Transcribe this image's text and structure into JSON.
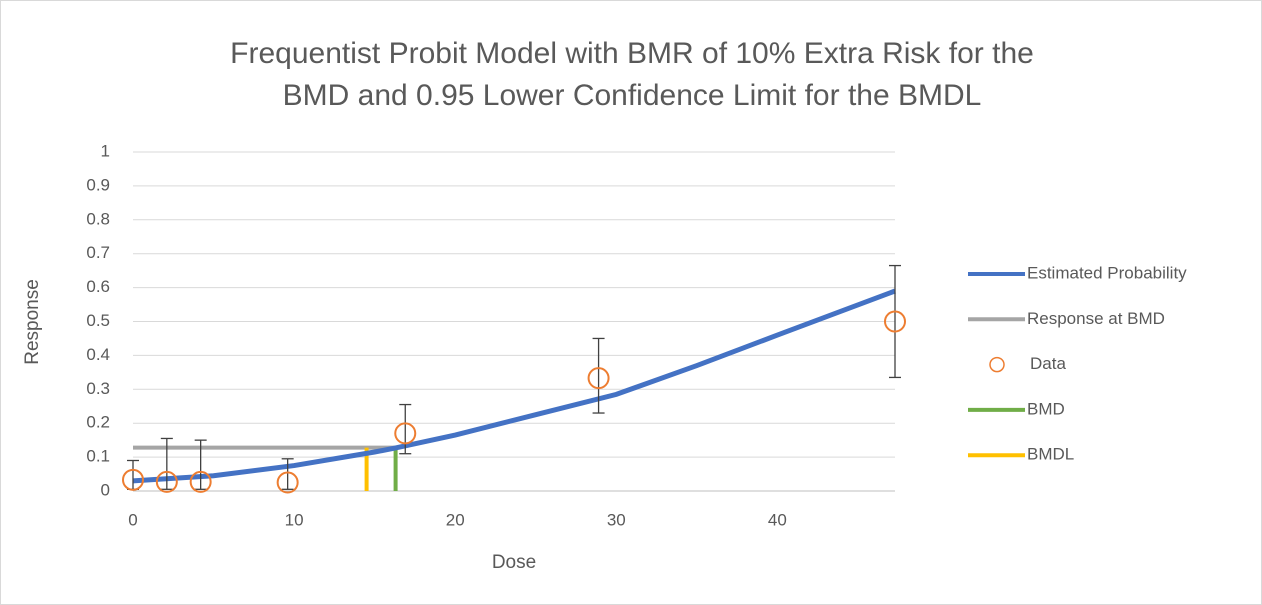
{
  "chart_data": {
    "type": "line",
    "title": [
      "Frequentist Probit Model with BMR of 10% Extra Risk for the",
      "BMD and 0.95 Lower Confidence Limit for the BMDL"
    ],
    "xlabel": "Dose",
    "ylabel": "Response",
    "xlim": [
      0,
      47.3
    ],
    "xticks": [
      0,
      10,
      20,
      30,
      40
    ],
    "ylim": [
      0,
      1
    ],
    "yticks": [
      0,
      0.1,
      0.2,
      0.3,
      0.4,
      0.5,
      0.6,
      0.7,
      0.8,
      0.9,
      1
    ],
    "grid": true,
    "legend": "right",
    "series": [
      {
        "name": "Estimated Probability",
        "type": "line",
        "color": "#4472c4",
        "x": [
          0,
          5,
          10,
          15,
          16.3,
          20,
          25,
          30,
          35,
          40,
          47.3
        ],
        "values": [
          0.03,
          0.045,
          0.075,
          0.115,
          0.127,
          0.165,
          0.225,
          0.285,
          0.37,
          0.46,
          0.59
        ]
      },
      {
        "name": "Response at BMD",
        "type": "line",
        "color": "#a5a5a5",
        "x": [
          0,
          16.3
        ],
        "values": [
          0.128,
          0.128
        ]
      },
      {
        "name": "Data",
        "type": "scatter",
        "color": "#ed7d31",
        "x": [
          0,
          2.1,
          4.2,
          9.6,
          16.9,
          28.9,
          47.3
        ],
        "values": [
          0.033,
          0.027,
          0.027,
          0.025,
          0.17,
          0.333,
          0.5
        ],
        "lower": [
          0.005,
          0.005,
          0.005,
          0.005,
          0.11,
          0.23,
          0.335
        ],
        "upper": [
          0.09,
          0.155,
          0.15,
          0.095,
          0.255,
          0.45,
          0.665
        ]
      },
      {
        "name": "BMD",
        "type": "line",
        "color": "#70ad47",
        "x": [
          16.3,
          16.3
        ],
        "values": [
          0,
          0.128
        ]
      },
      {
        "name": "BMDL",
        "type": "line",
        "color": "#ffc000",
        "x": [
          14.5,
          14.5
        ],
        "values": [
          0,
          0.128
        ]
      }
    ]
  }
}
